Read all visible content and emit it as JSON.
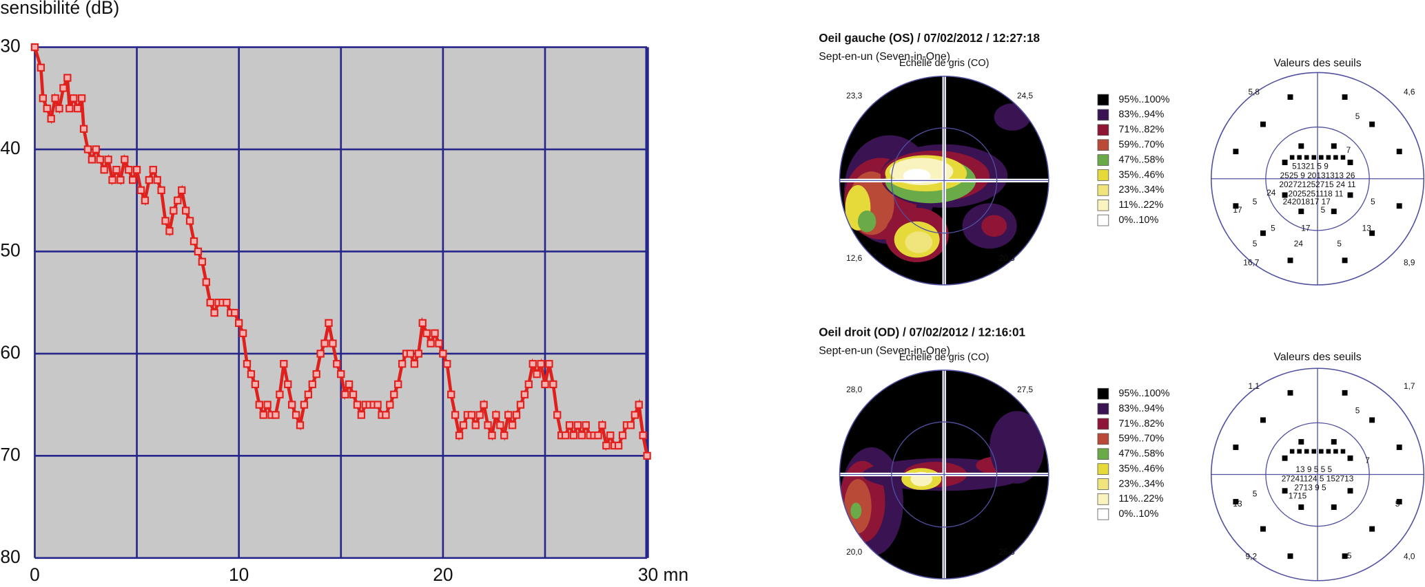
{
  "chart_data": {
    "type": "line",
    "y_label": "sensibilité (dB)",
    "color": "#e0201c",
    "x": [
      0,
      0.3,
      0.4,
      0.6,
      0.8,
      1.0,
      1.2,
      1.4,
      1.6,
      1.7,
      1.9,
      2.1,
      2.3,
      2.4,
      2.6,
      2.8,
      3.0,
      3.2,
      3.4,
      3.6,
      3.8,
      4.0,
      4.2,
      4.4,
      4.6,
      4.8,
      5.0,
      5.2,
      5.4,
      5.6,
      5.8,
      6.0,
      6.2,
      6.4,
      6.6,
      6.8,
      7.0,
      7.2,
      7.4,
      7.6,
      7.8,
      8.0,
      8.2,
      8.4,
      8.6,
      8.8,
      9.0,
      9.2,
      9.4,
      9.6,
      9.8,
      10.0,
      10.2,
      10.4,
      10.6,
      10.8,
      11.0,
      11.2,
      11.4,
      11.6,
      11.8,
      12.0,
      12.2,
      12.4,
      12.6,
      12.8,
      13.0,
      13.2,
      13.4,
      13.6,
      13.8,
      14.0,
      14.2,
      14.4,
      14.6,
      14.8,
      15.0,
      15.2,
      15.4,
      15.6,
      15.8,
      16.0,
      16.2,
      16.4,
      16.6,
      16.8,
      17.0,
      17.2,
      17.4,
      17.6,
      17.8,
      18.0,
      18.2,
      18.4,
      18.6,
      18.8,
      19.0,
      19.2,
      19.4,
      19.6,
      19.8,
      20.0,
      20.2,
      20.4,
      20.6,
      20.8,
      21.0,
      21.2,
      21.4,
      21.6,
      21.8,
      22.0,
      22.2,
      22.4,
      22.6,
      22.8,
      23.0,
      23.2,
      23.4,
      23.6,
      23.8,
      24.0,
      24.2,
      24.4,
      24.6,
      24.8,
      25.0,
      25.2,
      25.4,
      25.6,
      25.8,
      26.0,
      26.2,
      26.4,
      26.6,
      26.8,
      27.0,
      27.2,
      27.4,
      27.6,
      27.8,
      28.0,
      28.2,
      28.4,
      28.6,
      28.8,
      29.0,
      29.2,
      29.4,
      29.6,
      29.8,
      30.0
    ],
    "values": [
      30,
      32,
      35,
      36,
      37,
      35,
      36,
      34,
      33,
      36,
      35,
      36,
      35,
      38,
      40,
      41,
      40,
      41,
      42,
      41,
      43,
      42,
      43,
      41,
      42,
      43,
      42,
      44,
      45,
      43,
      42,
      43,
      44,
      47,
      48,
      46,
      45,
      44,
      46,
      47,
      49,
      50,
      51,
      53,
      55,
      56,
      55,
      55,
      55,
      56,
      56,
      57,
      58,
      61,
      62,
      63,
      65,
      66,
      65,
      66,
      66,
      64,
      61,
      63,
      65,
      66,
      67,
      65,
      64,
      63,
      62,
      60,
      59,
      57,
      59,
      61,
      62,
      64,
      63,
      64,
      65,
      66,
      65,
      65,
      65,
      65,
      66,
      66,
      65,
      64,
      63,
      61,
      60,
      60,
      61,
      60,
      57,
      58,
      59,
      58,
      59,
      60,
      61,
      64,
      66,
      68,
      67,
      66,
      66,
      67,
      66,
      65,
      67,
      68,
      66,
      67,
      68,
      66,
      67,
      66,
      65,
      64,
      63,
      61,
      62,
      61,
      63,
      61,
      63,
      66,
      68,
      68,
      67,
      68,
      67,
      68,
      67,
      68,
      68,
      68,
      67,
      69,
      68,
      69,
      69,
      68,
      67,
      67,
      66,
      65,
      68,
      70
    ],
    "xlim": [
      0,
      30
    ],
    "xticks": [
      0,
      10,
      20,
      {
        "value": 30,
        "label": "30 mn"
      }
    ],
    "x_grid": [
      5,
      15,
      25
    ],
    "ylim": [
      80,
      30
    ],
    "yticks": [
      30,
      40,
      50,
      60,
      70,
      80
    ],
    "grid": true
  },
  "eye_panels": [
    {
      "title": "Oeil gauche (OS) / 07/02/2012 / 12:27:18",
      "subtitle": "Sept-en-un (Seven-in-One)",
      "grayscale_title": "Echelle de gris (CO)",
      "grayscale_corners": [
        "23,3",
        "24,5",
        "12,6",
        "20,3"
      ],
      "legend": [
        {
          "label": "95%..100%",
          "color": "#000000"
        },
        {
          "label": "83%..94%",
          "color": "#3a1452"
        },
        {
          "label": "71%..82%",
          "color": "#8e1535"
        },
        {
          "label": "59%..70%",
          "color": "#b94a38"
        },
        {
          "label": "47%..58%",
          "color": "#6aaa48"
        },
        {
          "label": "35%..46%",
          "color": "#e6da3a"
        },
        {
          "label": "23%..34%",
          "color": "#efe57c"
        },
        {
          "label": "11%..22%",
          "color": "#f8f3bf"
        },
        {
          "label": "0%..10%",
          "color": "#ffffff"
        }
      ],
      "thresholds_title": "Valeurs des seuils",
      "threshold_corners": [
        "5,8",
        "4,6",
        "16,7",
        "8,9"
      ],
      "threshold_values": [
        "5",
        "7",
        "5",
        "24",
        "5",
        "17",
        "17",
        "5",
        "13",
        "5",
        "5",
        "24",
        "5",
        "51321 5   9",
        "2525 9 20131313 26",
        "202721252715 24 11",
        "2025251118 11",
        "24201817 17"
      ]
    },
    {
      "title": "Oeil droit (OD) / 07/02/2012 / 12:16:01",
      "subtitle": "Sept-en-un (Seven-in-One)",
      "grayscale_title": "Echelle de gris (CO)",
      "grayscale_corners": [
        "28,0",
        "27,5",
        "20,0",
        "25,3"
      ],
      "legend": [
        {
          "label": "95%..100%",
          "color": "#000000"
        },
        {
          "label": "83%..94%",
          "color": "#3a1452"
        },
        {
          "label": "71%..82%",
          "color": "#8e1535"
        },
        {
          "label": "59%..70%",
          "color": "#b94a38"
        },
        {
          "label": "47%..58%",
          "color": "#6aaa48"
        },
        {
          "label": "35%..46%",
          "color": "#e6da3a"
        },
        {
          "label": "23%..34%",
          "color": "#efe57c"
        },
        {
          "label": "11%..22%",
          "color": "#f8f3bf"
        },
        {
          "label": "0%..10%",
          "color": "#ffffff"
        }
      ],
      "thresholds_title": "Valeurs des seuils",
      "threshold_corners": [
        "1,1",
        "1,7",
        "9,2",
        "4,0"
      ],
      "threshold_values": [
        "5",
        "7",
        "5",
        "13",
        "5",
        "5",
        "13 9       5  5 5",
        "27241124 5 152713",
        "2713 9 5",
        "1715"
      ]
    }
  ]
}
